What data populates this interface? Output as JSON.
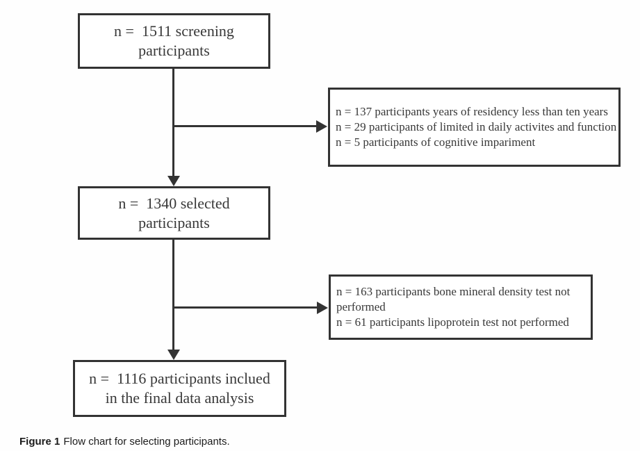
{
  "figure": {
    "boxes": {
      "screening": {
        "lines": [
          "n =  1511 screening",
          "participants"
        ]
      },
      "excluded_first": {
        "lines": [
          "n = 137 participants years of residency less than ten years",
          "n = 29 participants of limited in daily activites and function",
          "n = 5 participants of cognitive impariment"
        ]
      },
      "selected": {
        "lines": [
          "n =  1340 selected",
          "participants"
        ]
      },
      "excluded_second": {
        "lines": [
          "n = 163 participants bone mineral density test not",
          "performed",
          "n = 61 participants lipoprotein test not performed"
        ]
      },
      "final": {
        "lines": [
          "n =  1116 participants inclued",
          "in the final data analysis"
        ]
      }
    },
    "caption": {
      "label": "Figure 1",
      "text": "Flow chart for selecting participants."
    },
    "colors": {
      "line": "#333333",
      "text": "#383838",
      "background": "#fefefe"
    }
  }
}
